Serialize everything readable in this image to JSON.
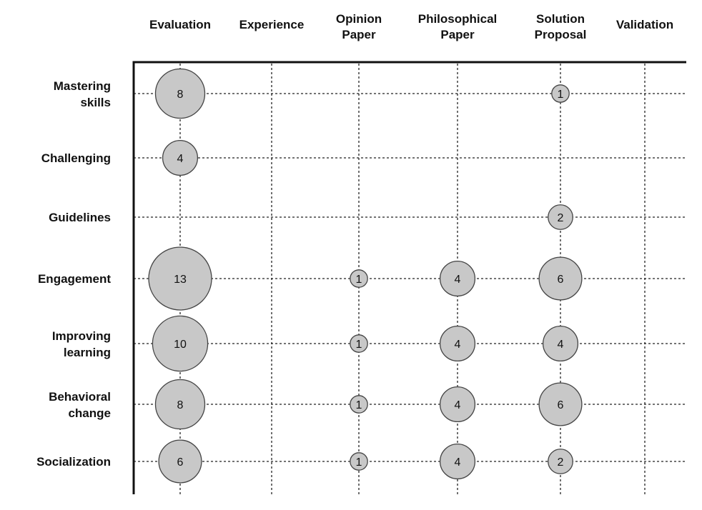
{
  "chart_data": {
    "type": "bubble",
    "title": "",
    "xlabel": "",
    "ylabel": "",
    "columns": [
      "Evaluation",
      "Experience",
      "Opinion\nPaper",
      "Philosophical\nPaper",
      "Solution\nProposal",
      "Validation"
    ],
    "rows": [
      "Mastering\nskills",
      "Challenging",
      "Guidelines",
      "Engagement",
      "Improving\nlearning",
      "Behavioral\nchange",
      "Socialization"
    ],
    "points": [
      {
        "row": "Mastering skills",
        "col": "Evaluation",
        "value": 8
      },
      {
        "row": "Mastering skills",
        "col": "Solution Proposal",
        "value": 1
      },
      {
        "row": "Challenging",
        "col": "Evaluation",
        "value": 4
      },
      {
        "row": "Guidelines",
        "col": "Solution Proposal",
        "value": 2
      },
      {
        "row": "Engagement",
        "col": "Evaluation",
        "value": 13
      },
      {
        "row": "Engagement",
        "col": "Opinion Paper",
        "value": 1
      },
      {
        "row": "Engagement",
        "col": "Philosophical Paper",
        "value": 4
      },
      {
        "row": "Engagement",
        "col": "Solution Proposal",
        "value": 6
      },
      {
        "row": "Improving learning",
        "col": "Evaluation",
        "value": 10
      },
      {
        "row": "Improving learning",
        "col": "Opinion Paper",
        "value": 1
      },
      {
        "row": "Improving learning",
        "col": "Philosophical Paper",
        "value": 4
      },
      {
        "row": "Improving learning",
        "col": "Solution Proposal",
        "value": 4
      },
      {
        "row": "Behavioral change",
        "col": "Evaluation",
        "value": 8
      },
      {
        "row": "Behavioral change",
        "col": "Opinion Paper",
        "value": 1
      },
      {
        "row": "Behavioral change",
        "col": "Philosophical Paper",
        "value": 4
      },
      {
        "row": "Behavioral change",
        "col": "Solution Proposal",
        "value": 6
      },
      {
        "row": "Socialization",
        "col": "Evaluation",
        "value": 6
      },
      {
        "row": "Socialization",
        "col": "Opinion Paper",
        "value": 1
      },
      {
        "row": "Socialization",
        "col": "Philosophical Paper",
        "value": 4
      },
      {
        "row": "Socialization",
        "col": "Solution Proposal",
        "value": 2
      }
    ],
    "grid": true,
    "bubble_color": "#c8c8c8",
    "bubble_stroke": "#444444"
  }
}
